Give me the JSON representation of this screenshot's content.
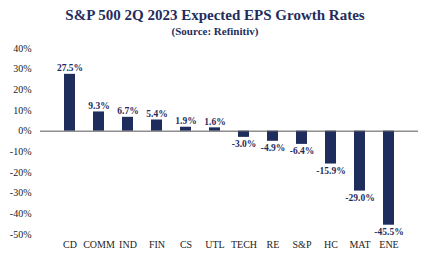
{
  "chart_data": {
    "type": "bar",
    "title": "S&P 500 2Q 2023 Expected EPS Growth Rates",
    "subtitle": "(Source: Refinitiv)",
    "categories": [
      "CD",
      "COMM",
      "IND",
      "FIN",
      "CS",
      "UTL",
      "TECH",
      "RE",
      "S&P",
      "HC",
      "MAT",
      "ENE"
    ],
    "values": [
      27.5,
      9.3,
      6.7,
      5.4,
      1.9,
      1.6,
      -3.0,
      -4.9,
      -6.4,
      -15.9,
      -29.0,
      -45.5
    ],
    "value_labels": [
      "27.5%",
      "9.3%",
      "6.7%",
      "5.4%",
      "1.9%",
      "1.6%",
      "-3.0%",
      "-4.9%",
      "-6.4%",
      "-15.9%",
      "-29.0%",
      "-45.5%"
    ],
    "color": "#1f2d5c",
    "ylim": [
      -50,
      40
    ],
    "yticks": [
      {
        "value": -50,
        "label": "-50%"
      },
      {
        "value": -40,
        "label": "-40%"
      },
      {
        "value": -30,
        "label": "-30%"
      },
      {
        "value": -20,
        "label": "-20%"
      },
      {
        "value": -10,
        "label": "-10%"
      },
      {
        "value": 0,
        "label": "0%"
      },
      {
        "value": 10,
        "label": "10%"
      },
      {
        "value": 20,
        "label": "20%"
      },
      {
        "value": 30,
        "label": "30%"
      },
      {
        "value": 40,
        "label": "40%"
      }
    ],
    "grid": false,
    "data_labels": true
  }
}
